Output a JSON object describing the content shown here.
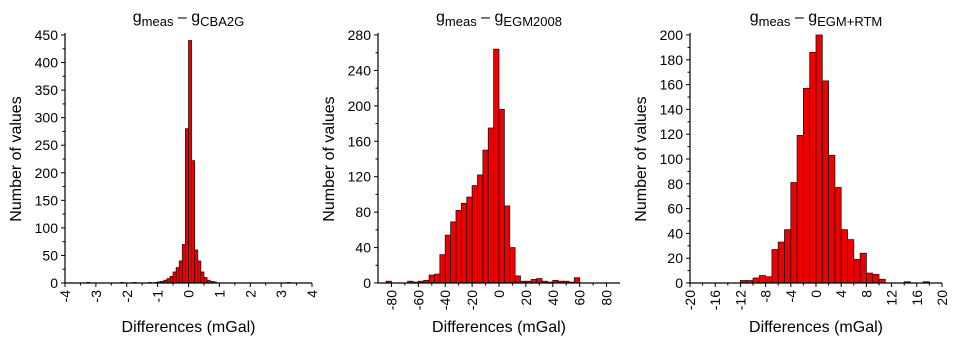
{
  "style": {
    "bar_fill": "#ee0000",
    "bar_stroke": "#1a1a1a",
    "axis_color": "#000000"
  },
  "chart_data": [
    {
      "type": "bar",
      "title_main": "g",
      "title_main_sub": "meas",
      "title_sep": " – ",
      "title_ref": "g",
      "title_ref_sub": "CBA2G",
      "xlabel": "Differences (mGal)",
      "ylabel": "Number of values",
      "xlim": [
        -4,
        4
      ],
      "ylim": [
        0,
        450
      ],
      "xticks": [
        -4,
        -3,
        -2,
        -1,
        0,
        1,
        2,
        3,
        4
      ],
      "xtick_labels": [
        "-4",
        "-3",
        "-2",
        "-1",
        "0",
        "1",
        "2",
        "3",
        "4"
      ],
      "yticks": [
        0,
        50,
        100,
        150,
        200,
        250,
        300,
        350,
        400,
        450
      ],
      "ytick_labels": [
        "0",
        "50",
        "100",
        "150",
        "200",
        "250",
        "300",
        "350",
        "400",
        "450"
      ],
      "bin_width": 0.1,
      "bins": [
        {
          "x": -3.3,
          "value": 1
        },
        {
          "x": -2.2,
          "value": 1
        },
        {
          "x": -1.8,
          "value": 1
        },
        {
          "x": -1.3,
          "value": 1
        },
        {
          "x": -1.1,
          "value": 1
        },
        {
          "x": -1.0,
          "value": 2
        },
        {
          "x": -0.9,
          "value": 3
        },
        {
          "x": -0.8,
          "value": 5
        },
        {
          "x": -0.7,
          "value": 8
        },
        {
          "x": -0.6,
          "value": 12
        },
        {
          "x": -0.5,
          "value": 20
        },
        {
          "x": -0.4,
          "value": 28
        },
        {
          "x": -0.3,
          "value": 40
        },
        {
          "x": -0.2,
          "value": 70
        },
        {
          "x": -0.1,
          "value": 280
        },
        {
          "x": 0.0,
          "value": 440
        },
        {
          "x": 0.1,
          "value": 222
        },
        {
          "x": 0.2,
          "value": 60
        },
        {
          "x": 0.3,
          "value": 40
        },
        {
          "x": 0.4,
          "value": 20
        },
        {
          "x": 0.5,
          "value": 10
        },
        {
          "x": 0.6,
          "value": 5
        },
        {
          "x": 0.7,
          "value": 3
        },
        {
          "x": 0.8,
          "value": 2
        },
        {
          "x": 3.2,
          "value": 1
        }
      ]
    },
    {
      "type": "bar",
      "title_main": "g",
      "title_main_sub": "meas",
      "title_sep": " – ",
      "title_ref": "g",
      "title_ref_sub": "EGM2008",
      "xlabel": "Differences (mGal)",
      "ylabel": "Number of values",
      "xlim": [
        -90,
        90
      ],
      "ylim": [
        0,
        280
      ],
      "xticks": [
        -80,
        -60,
        -40,
        -20,
        0,
        20,
        40,
        60,
        80
      ],
      "xtick_labels": [
        "-80",
        "-60",
        "-40",
        "-20",
        "0",
        "20",
        "40",
        "60",
        "80"
      ],
      "yticks": [
        0,
        40,
        80,
        120,
        160,
        200,
        240,
        280
      ],
      "ytick_labels": [
        "0",
        "40",
        "80",
        "120",
        "160",
        "200",
        "240",
        "280"
      ],
      "bin_width": 4,
      "bins": [
        {
          "x": -84,
          "value": 2
        },
        {
          "x": -68,
          "value": 2
        },
        {
          "x": -64,
          "value": 1
        },
        {
          "x": -60,
          "value": 2
        },
        {
          "x": -56,
          "value": 3
        },
        {
          "x": -52,
          "value": 9
        },
        {
          "x": -48,
          "value": 10
        },
        {
          "x": -44,
          "value": 32
        },
        {
          "x": -40,
          "value": 54
        },
        {
          "x": -36,
          "value": 69
        },
        {
          "x": -32,
          "value": 82
        },
        {
          "x": -28,
          "value": 90
        },
        {
          "x": -24,
          "value": 97
        },
        {
          "x": -20,
          "value": 110
        },
        {
          "x": -16,
          "value": 122
        },
        {
          "x": -12,
          "value": 150
        },
        {
          "x": -8,
          "value": 175
        },
        {
          "x": -4,
          "value": 264
        },
        {
          "x": 0,
          "value": 196
        },
        {
          "x": 4,
          "value": 87
        },
        {
          "x": 8,
          "value": 40
        },
        {
          "x": 12,
          "value": 8
        },
        {
          "x": 16,
          "value": 2
        },
        {
          "x": 20,
          "value": 2
        },
        {
          "x": 24,
          "value": 4
        },
        {
          "x": 28,
          "value": 5
        },
        {
          "x": 32,
          "value": 2
        },
        {
          "x": 36,
          "value": 1
        },
        {
          "x": 40,
          "value": 3
        },
        {
          "x": 44,
          "value": 2
        },
        {
          "x": 48,
          "value": 2
        },
        {
          "x": 52,
          "value": 1
        },
        {
          "x": 56,
          "value": 6
        }
      ]
    },
    {
      "type": "bar",
      "title_main": "g",
      "title_main_sub": "meas",
      "title_sep": " – ",
      "title_ref": "g",
      "title_ref_sub": "EGM+RTM",
      "xlabel": "Differences (mGal)",
      "ylabel": "Number of values",
      "xlim": [
        -20,
        20
      ],
      "ylim": [
        0,
        200
      ],
      "xticks": [
        -20,
        -16,
        -12,
        -8,
        -4,
        0,
        4,
        8,
        12,
        16,
        20
      ],
      "xtick_labels": [
        "-20",
        "-16",
        "-12",
        "-8",
        "-4",
        "0",
        "4",
        "8",
        "12",
        "16",
        "20"
      ],
      "yticks": [
        0,
        20,
        40,
        60,
        80,
        100,
        120,
        140,
        160,
        180,
        200
      ],
      "ytick_labels": [
        "0",
        "20",
        "40",
        "60",
        "80",
        "100",
        "120",
        "140",
        "160",
        "180",
        "200"
      ],
      "bin_width": 1,
      "bins": [
        {
          "x": -12,
          "value": 2
        },
        {
          "x": -11,
          "value": 2
        },
        {
          "x": -10,
          "value": 4
        },
        {
          "x": -9,
          "value": 6
        },
        {
          "x": -8,
          "value": 5
        },
        {
          "x": -7,
          "value": 27
        },
        {
          "x": -6,
          "value": 33
        },
        {
          "x": -5,
          "value": 43
        },
        {
          "x": -4,
          "value": 81
        },
        {
          "x": -3,
          "value": 119
        },
        {
          "x": -2,
          "value": 157
        },
        {
          "x": -1,
          "value": 186
        },
        {
          "x": 0,
          "value": 200
        },
        {
          "x": 1,
          "value": 163
        },
        {
          "x": 2,
          "value": 103
        },
        {
          "x": 3,
          "value": 77
        },
        {
          "x": 4,
          "value": 43
        },
        {
          "x": 5,
          "value": 35
        },
        {
          "x": 6,
          "value": 19
        },
        {
          "x": 7,
          "value": 24
        },
        {
          "x": 8,
          "value": 8
        },
        {
          "x": 9,
          "value": 7
        },
        {
          "x": 10,
          "value": 3
        },
        {
          "x": 14,
          "value": 1
        },
        {
          "x": 17,
          "value": 1
        }
      ]
    }
  ]
}
